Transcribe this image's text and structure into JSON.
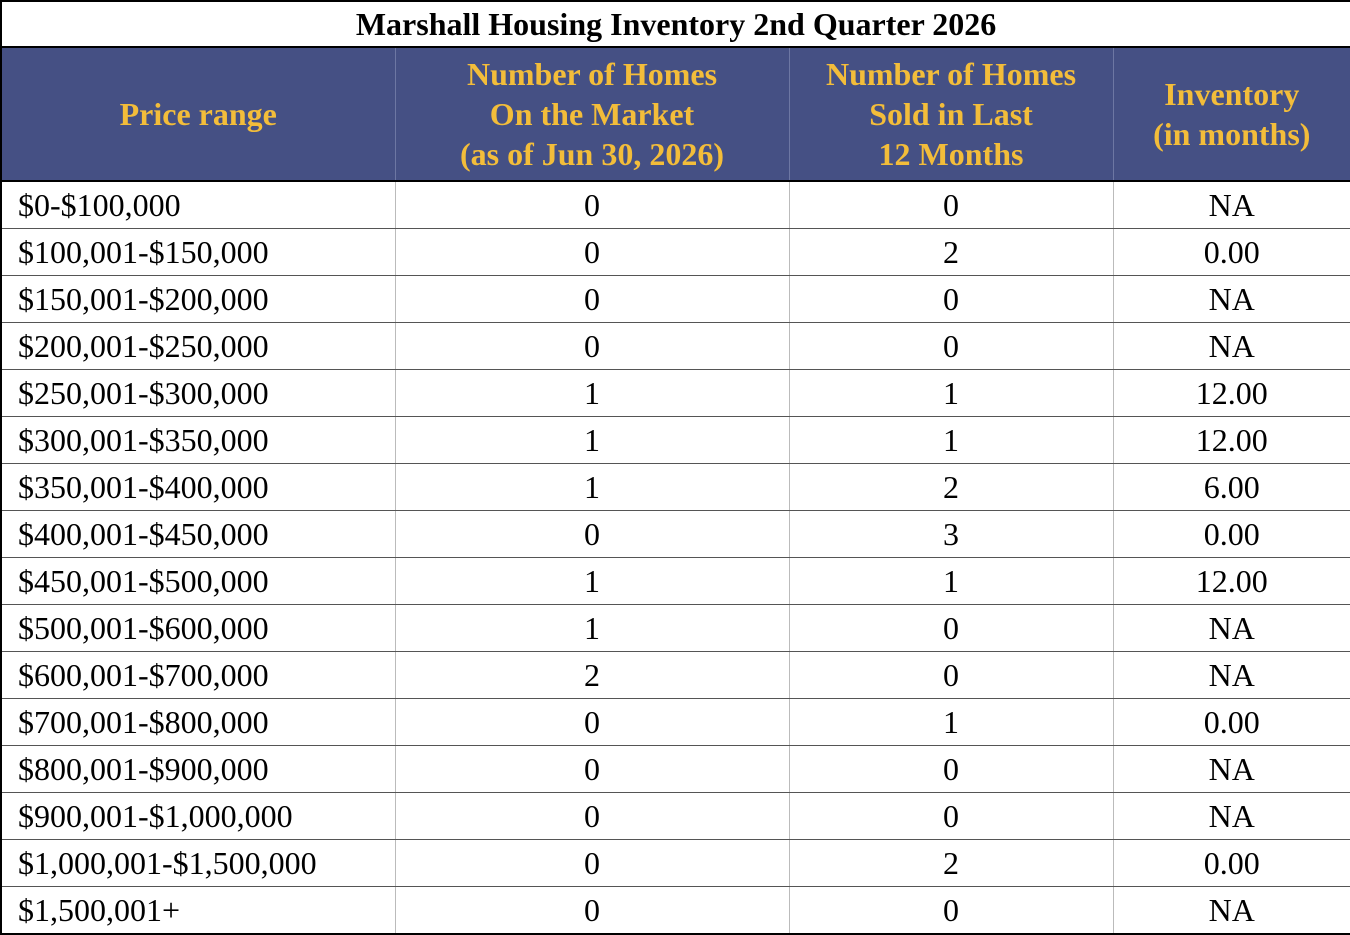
{
  "table": {
    "title": "Marshall Housing Inventory 2nd Quarter 2026",
    "headers": [
      {
        "lines": [
          "Price range"
        ]
      },
      {
        "lines": [
          "Number of Homes",
          "On the Market",
          "(as of Jun 30, 2026)"
        ]
      },
      {
        "lines": [
          "Number of Homes",
          "Sold in Last",
          "12 Months"
        ]
      },
      {
        "lines": [
          "Inventory",
          "(in months)"
        ]
      }
    ],
    "rows": [
      {
        "range": "$0-$100,000",
        "on_market": "0",
        "sold": "0",
        "inventory": "NA"
      },
      {
        "range": "$100,001-$150,000",
        "on_market": "0",
        "sold": "2",
        "inventory": "0.00"
      },
      {
        "range": "$150,001-$200,000",
        "on_market": "0",
        "sold": "0",
        "inventory": "NA"
      },
      {
        "range": "$200,001-$250,000",
        "on_market": "0",
        "sold": "0",
        "inventory": "NA"
      },
      {
        "range": "$250,001-$300,000",
        "on_market": "1",
        "sold": "1",
        "inventory": "12.00"
      },
      {
        "range": "$300,001-$350,000",
        "on_market": "1",
        "sold": "1",
        "inventory": "12.00"
      },
      {
        "range": "$350,001-$400,000",
        "on_market": "1",
        "sold": "2",
        "inventory": "6.00"
      },
      {
        "range": "$400,001-$450,000",
        "on_market": "0",
        "sold": "3",
        "inventory": "0.00"
      },
      {
        "range": "$450,001-$500,000",
        "on_market": "1",
        "sold": "1",
        "inventory": "12.00"
      },
      {
        "range": "$500,001-$600,000",
        "on_market": "1",
        "sold": "0",
        "inventory": "NA"
      },
      {
        "range": "$600,001-$700,000",
        "on_market": "2",
        "sold": "0",
        "inventory": "NA"
      },
      {
        "range": "$700,001-$800,000",
        "on_market": "0",
        "sold": "1",
        "inventory": "0.00"
      },
      {
        "range": "$800,001-$900,000",
        "on_market": "0",
        "sold": "0",
        "inventory": "NA"
      },
      {
        "range": "$900,001-$1,000,000",
        "on_market": "0",
        "sold": "0",
        "inventory": "NA"
      },
      {
        "range": "$1,000,001-$1,500,000",
        "on_market": "0",
        "sold": "2",
        "inventory": "0.00"
      },
      {
        "range": "$1,500,001+",
        "on_market": "0",
        "sold": "0",
        "inventory": "NA"
      }
    ]
  },
  "colors": {
    "header_bg": "#455084",
    "header_text": "#f3bd3a"
  }
}
